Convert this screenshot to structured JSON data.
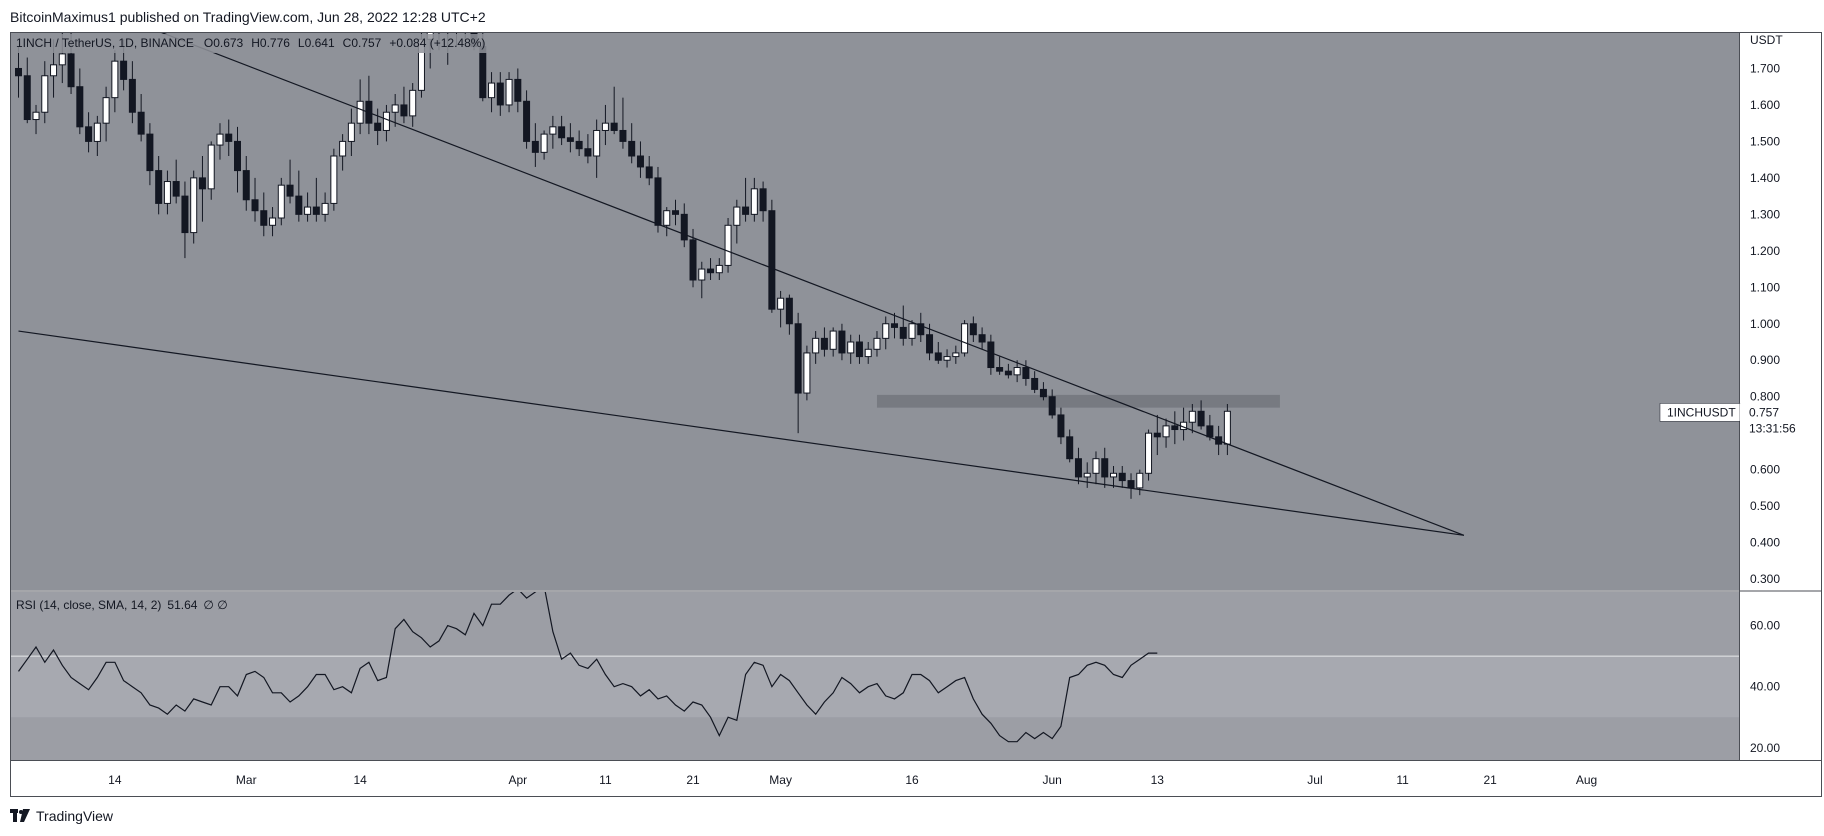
{
  "header": {
    "publisher_text": "BitcoinMaximus1 published on TradingView.com, Jun 28, 2022 12:28 UTC+2"
  },
  "footer": {
    "brand": "TradingView",
    "logo_icon": "tradingview-logo-icon"
  },
  "symbol_legend": {
    "symbol": "1INCH / TetherUS",
    "interval": "1D",
    "exchange": "BINANCE",
    "open_label": "O",
    "open": "0.673",
    "high_label": "H",
    "high": "0.776",
    "low_label": "L",
    "low": "0.641",
    "close_label": "C",
    "close": "0.757",
    "change": "+0.084 (+12.48%)"
  },
  "price_tag": {
    "symbol": "1INCHUSDT",
    "price": "0.757",
    "countdown": "13:31:56"
  },
  "rsi_legend": {
    "text": "RSI (14, close, SMA, 14, 2)",
    "value": "51.64",
    "extra": "∅ ∅"
  },
  "colors": {
    "panel_bg": "#8f9299",
    "rsi_bg": "#9c9ea5",
    "rsi_band": "#a7a9b0",
    "bull_body": "#ffffff",
    "bear_body": "#131722",
    "line": "#131722",
    "resistance_zone": "#6f727a",
    "price_tag_bg": "#ffffff"
  },
  "chart_data": [
    {
      "type": "candlestick",
      "title": "1INCH / TetherUS, 1D, BINANCE",
      "y_axis_unit": "USDT",
      "yticks": [
        "1.700",
        "1.600",
        "1.500",
        "1.400",
        "1.300",
        "1.200",
        "1.100",
        "1.000",
        "0.900",
        "0.800",
        "0.700",
        "0.600",
        "0.500",
        "0.400",
        "0.300"
      ],
      "ylim": [
        0.27,
        1.8
      ],
      "y_scale": "linear",
      "x_ticks": [
        "14",
        "Mar",
        "14",
        "Apr",
        "11",
        "21",
        "May",
        "16",
        "Jun",
        "13",
        "Jul",
        "11",
        "21",
        "Aug"
      ],
      "x_tick_dates": [
        "2022-02-14",
        "2022-03-01",
        "2022-03-14",
        "2022-04-01",
        "2022-04-11",
        "2022-04-21",
        "2022-05-01",
        "2022-05-16",
        "2022-06-01",
        "2022-06-13",
        "2022-07-01",
        "2022-07-11",
        "2022-07-21",
        "2022-08-01"
      ],
      "first_candle_date": "2022-02-03",
      "candles": [
        [
          1.7,
          1.76,
          1.62,
          1.68
        ],
        [
          1.68,
          1.73,
          1.55,
          1.56
        ],
        [
          1.56,
          1.6,
          1.52,
          1.58
        ],
        [
          1.58,
          1.72,
          1.55,
          1.68
        ],
        [
          1.68,
          1.78,
          1.62,
          1.71
        ],
        [
          1.71,
          1.82,
          1.66,
          1.74
        ],
        [
          1.74,
          1.8,
          1.63,
          1.65
        ],
        [
          1.65,
          1.7,
          1.52,
          1.54
        ],
        [
          1.54,
          1.58,
          1.47,
          1.5
        ],
        [
          1.5,
          1.57,
          1.46,
          1.55
        ],
        [
          1.55,
          1.65,
          1.5,
          1.62
        ],
        [
          1.62,
          1.75,
          1.58,
          1.72
        ],
        [
          1.72,
          1.78,
          1.64,
          1.67
        ],
        [
          1.67,
          1.72,
          1.55,
          1.58
        ],
        [
          1.58,
          1.63,
          1.5,
          1.52
        ],
        [
          1.52,
          1.55,
          1.38,
          1.42
        ],
        [
          1.42,
          1.46,
          1.3,
          1.33
        ],
        [
          1.33,
          1.42,
          1.3,
          1.39
        ],
        [
          1.39,
          1.45,
          1.33,
          1.35
        ],
        [
          1.35,
          1.39,
          1.18,
          1.25
        ],
        [
          1.25,
          1.42,
          1.22,
          1.4
        ],
        [
          1.4,
          1.46,
          1.28,
          1.37
        ],
        [
          1.37,
          1.5,
          1.34,
          1.49
        ],
        [
          1.49,
          1.55,
          1.45,
          1.52
        ],
        [
          1.52,
          1.56,
          1.46,
          1.5
        ],
        [
          1.5,
          1.54,
          1.36,
          1.42
        ],
        [
          1.42,
          1.46,
          1.31,
          1.34
        ],
        [
          1.34,
          1.4,
          1.28,
          1.31
        ],
        [
          1.31,
          1.36,
          1.24,
          1.27
        ],
        [
          1.27,
          1.32,
          1.24,
          1.29
        ],
        [
          1.29,
          1.4,
          1.27,
          1.38
        ],
        [
          1.38,
          1.45,
          1.33,
          1.35
        ],
        [
          1.35,
          1.42,
          1.28,
          1.3
        ],
        [
          1.3,
          1.36,
          1.28,
          1.32
        ],
        [
          1.32,
          1.4,
          1.28,
          1.3
        ],
        [
          1.3,
          1.36,
          1.28,
          1.33
        ],
        [
          1.33,
          1.48,
          1.31,
          1.46
        ],
        [
          1.46,
          1.52,
          1.42,
          1.5
        ],
        [
          1.5,
          1.59,
          1.46,
          1.55
        ],
        [
          1.55,
          1.67,
          1.52,
          1.61
        ],
        [
          1.61,
          1.68,
          1.52,
          1.55
        ],
        [
          1.55,
          1.59,
          1.49,
          1.53
        ],
        [
          1.53,
          1.6,
          1.5,
          1.58
        ],
        [
          1.58,
          1.63,
          1.54,
          1.6
        ],
        [
          1.6,
          1.65,
          1.55,
          1.57
        ],
        [
          1.57,
          1.66,
          1.54,
          1.64
        ],
        [
          1.64,
          1.8,
          1.62,
          1.78
        ],
        [
          1.78,
          1.9,
          1.7,
          1.85
        ],
        [
          1.85,
          1.95,
          1.75,
          1.82
        ],
        [
          1.82,
          1.92,
          1.71,
          1.87
        ],
        [
          1.87,
          1.96,
          1.76,
          1.9
        ],
        [
          1.9,
          1.96,
          1.78,
          1.8
        ],
        [
          1.8,
          1.85,
          1.75,
          1.76
        ],
        [
          1.76,
          1.8,
          1.61,
          1.62
        ],
        [
          1.62,
          1.69,
          1.58,
          1.66
        ],
        [
          1.66,
          1.69,
          1.57,
          1.6
        ],
        [
          1.6,
          1.69,
          1.58,
          1.67
        ],
        [
          1.67,
          1.7,
          1.58,
          1.61
        ],
        [
          1.61,
          1.64,
          1.48,
          1.5
        ],
        [
          1.5,
          1.55,
          1.43,
          1.47
        ],
        [
          1.47,
          1.53,
          1.45,
          1.52
        ],
        [
          1.52,
          1.57,
          1.48,
          1.54
        ],
        [
          1.54,
          1.57,
          1.49,
          1.51
        ],
        [
          1.51,
          1.55,
          1.47,
          1.5
        ],
        [
          1.5,
          1.53,
          1.46,
          1.48
        ],
        [
          1.48,
          1.52,
          1.44,
          1.46
        ],
        [
          1.46,
          1.56,
          1.4,
          1.53
        ],
        [
          1.53,
          1.6,
          1.49,
          1.55
        ],
        [
          1.55,
          1.65,
          1.52,
          1.53
        ],
        [
          1.53,
          1.62,
          1.48,
          1.5
        ],
        [
          1.5,
          1.55,
          1.44,
          1.46
        ],
        [
          1.46,
          1.5,
          1.4,
          1.43
        ],
        [
          1.43,
          1.46,
          1.38,
          1.4
        ],
        [
          1.4,
          1.43,
          1.25,
          1.27
        ],
        [
          1.27,
          1.32,
          1.24,
          1.31
        ],
        [
          1.31,
          1.34,
          1.27,
          1.3
        ],
        [
          1.3,
          1.33,
          1.21,
          1.23
        ],
        [
          1.23,
          1.26,
          1.1,
          1.12
        ],
        [
          1.12,
          1.17,
          1.07,
          1.15
        ],
        [
          1.15,
          1.18,
          1.12,
          1.14
        ],
        [
          1.14,
          1.18,
          1.12,
          1.16
        ],
        [
          1.16,
          1.29,
          1.14,
          1.27
        ],
        [
          1.27,
          1.34,
          1.22,
          1.32
        ],
        [
          1.32,
          1.4,
          1.28,
          1.3
        ],
        [
          1.3,
          1.4,
          1.28,
          1.37
        ],
        [
          1.37,
          1.39,
          1.28,
          1.31
        ],
        [
          1.31,
          1.34,
          1.03,
          1.04
        ],
        [
          1.04,
          1.09,
          0.99,
          1.07
        ],
        [
          1.07,
          1.08,
          0.97,
          1.0
        ],
        [
          1.0,
          1.03,
          0.7,
          0.81
        ],
        [
          0.81,
          0.94,
          0.79,
          0.92
        ],
        [
          0.92,
          0.98,
          0.89,
          0.96
        ],
        [
          0.96,
          0.99,
          0.91,
          0.93
        ],
        [
          0.93,
          0.99,
          0.91,
          0.98
        ],
        [
          0.98,
          1.0,
          0.9,
          0.92
        ],
        [
          0.92,
          0.97,
          0.89,
          0.95
        ],
        [
          0.95,
          0.97,
          0.89,
          0.91
        ],
        [
          0.91,
          0.95,
          0.89,
          0.93
        ],
        [
          0.93,
          0.98,
          0.91,
          0.96
        ],
        [
          0.96,
          1.02,
          0.93,
          1.0
        ],
        [
          1.0,
          1.03,
          0.96,
          0.99
        ],
        [
          0.99,
          1.05,
          0.94,
          0.96
        ],
        [
          0.96,
          1.01,
          0.94,
          1.0
        ],
        [
          1.0,
          1.03,
          0.95,
          0.97
        ],
        [
          0.97,
          1.0,
          0.9,
          0.92
        ],
        [
          0.92,
          0.95,
          0.89,
          0.9
        ],
        [
          0.9,
          0.93,
          0.88,
          0.91
        ],
        [
          0.91,
          0.94,
          0.89,
          0.92
        ],
        [
          0.92,
          1.01,
          0.91,
          1.0
        ],
        [
          1.0,
          1.02,
          0.95,
          0.97
        ],
        [
          0.97,
          0.99,
          0.93,
          0.95
        ],
        [
          0.95,
          0.97,
          0.86,
          0.88
        ],
        [
          0.88,
          0.91,
          0.86,
          0.87
        ],
        [
          0.87,
          0.89,
          0.85,
          0.86
        ],
        [
          0.86,
          0.9,
          0.84,
          0.88
        ],
        [
          0.88,
          0.9,
          0.83,
          0.85
        ],
        [
          0.85,
          0.87,
          0.81,
          0.82
        ],
        [
          0.82,
          0.84,
          0.79,
          0.8
        ],
        [
          0.8,
          0.82,
          0.74,
          0.75
        ],
        [
          0.75,
          0.77,
          0.67,
          0.69
        ],
        [
          0.69,
          0.71,
          0.62,
          0.63
        ],
        [
          0.63,
          0.66,
          0.56,
          0.58
        ],
        [
          0.58,
          0.62,
          0.55,
          0.59
        ],
        [
          0.59,
          0.65,
          0.56,
          0.63
        ],
        [
          0.63,
          0.66,
          0.55,
          0.58
        ],
        [
          0.58,
          0.61,
          0.55,
          0.59
        ],
        [
          0.59,
          0.61,
          0.55,
          0.57
        ],
        [
          0.57,
          0.59,
          0.52,
          0.55
        ],
        [
          0.55,
          0.6,
          0.53,
          0.59
        ],
        [
          0.59,
          0.71,
          0.57,
          0.7
        ],
        [
          0.7,
          0.75,
          0.64,
          0.69
        ],
        [
          0.69,
          0.74,
          0.66,
          0.72
        ],
        [
          0.72,
          0.76,
          0.67,
          0.71
        ],
        [
          0.71,
          0.77,
          0.68,
          0.73
        ],
        [
          0.73,
          0.78,
          0.7,
          0.76
        ],
        [
          0.76,
          0.79,
          0.71,
          0.72
        ],
        [
          0.72,
          0.75,
          0.68,
          0.69
        ],
        [
          0.69,
          0.72,
          0.64,
          0.67
        ],
        [
          0.67,
          0.78,
          0.64,
          0.76
        ]
      ],
      "trendlines": [
        {
          "from": {
            "date": "2022-02-03",
            "price": 1.95
          },
          "to": {
            "date": "2022-07-18",
            "price": 0.42
          }
        },
        {
          "from": {
            "date": "2022-02-03",
            "price": 0.98
          },
          "to": {
            "date": "2022-07-18",
            "price": 0.42
          }
        }
      ],
      "resistance_zone": {
        "from": "2022-05-12",
        "to": "2022-06-27",
        "low": 0.77,
        "high": 0.805
      }
    },
    {
      "type": "line",
      "title": "RSI (14, close, SMA, 14, 2)",
      "yticks": [
        "60.00",
        "40.00",
        "20.00"
      ],
      "ylim": [
        16,
        71
      ],
      "band": [
        30,
        50
      ],
      "values": [
        45,
        49,
        53,
        48,
        52,
        47,
        43,
        41,
        39,
        43,
        48,
        48,
        42,
        40,
        38,
        34,
        33,
        31,
        34,
        32,
        36,
        35,
        34,
        40,
        40,
        37,
        44,
        45,
        43,
        38,
        38,
        35,
        37,
        40,
        44,
        44,
        39,
        40,
        38,
        46,
        48,
        42,
        43,
        59,
        62,
        58,
        56,
        53,
        55,
        60,
        59,
        57,
        64,
        60,
        67,
        67,
        70,
        72,
        69,
        71,
        73,
        58,
        49,
        51,
        47,
        46,
        49,
        44,
        40,
        41,
        40,
        37,
        39,
        36,
        37,
        34,
        32,
        35,
        34,
        30,
        24,
        30,
        29,
        44,
        48,
        47,
        40,
        44,
        42,
        38,
        34,
        31,
        35,
        38,
        43,
        41,
        38,
        40,
        41,
        37,
        36,
        38,
        44,
        44,
        42,
        38,
        40,
        42,
        43,
        36,
        31,
        28,
        24,
        22,
        22,
        25,
        23,
        25,
        23,
        27,
        43,
        44,
        47,
        48,
        47,
        44,
        43,
        47,
        49,
        51,
        51
      ]
    }
  ]
}
